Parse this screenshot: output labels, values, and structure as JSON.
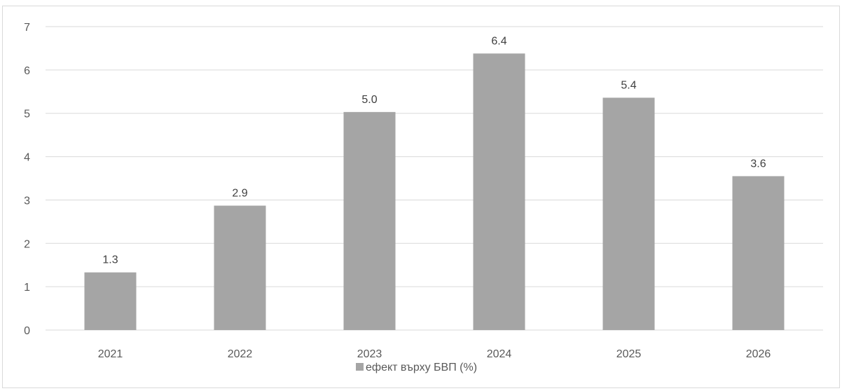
{
  "chart_data": {
    "type": "bar",
    "categories": [
      "2021",
      "2022",
      "2023",
      "2024",
      "2025",
      "2026"
    ],
    "series": [
      {
        "name": "ефект върху БВП (%)",
        "values": [
          1.33,
          2.87,
          5.03,
          6.38,
          5.36,
          3.55
        ],
        "labels": [
          "1.3",
          "2.9",
          "5.0",
          "6.4",
          "5.4",
          "3.6"
        ],
        "color": "#a5a5a5"
      }
    ],
    "title": "",
    "xlabel": "",
    "ylabel": "",
    "ylim": [
      0,
      7
    ],
    "yticks": [
      "0",
      "1",
      "2",
      "3",
      "4",
      "5",
      "6",
      "7"
    ],
    "grid": true,
    "gridColor": "#d9d9d9",
    "legend": "bottom"
  }
}
